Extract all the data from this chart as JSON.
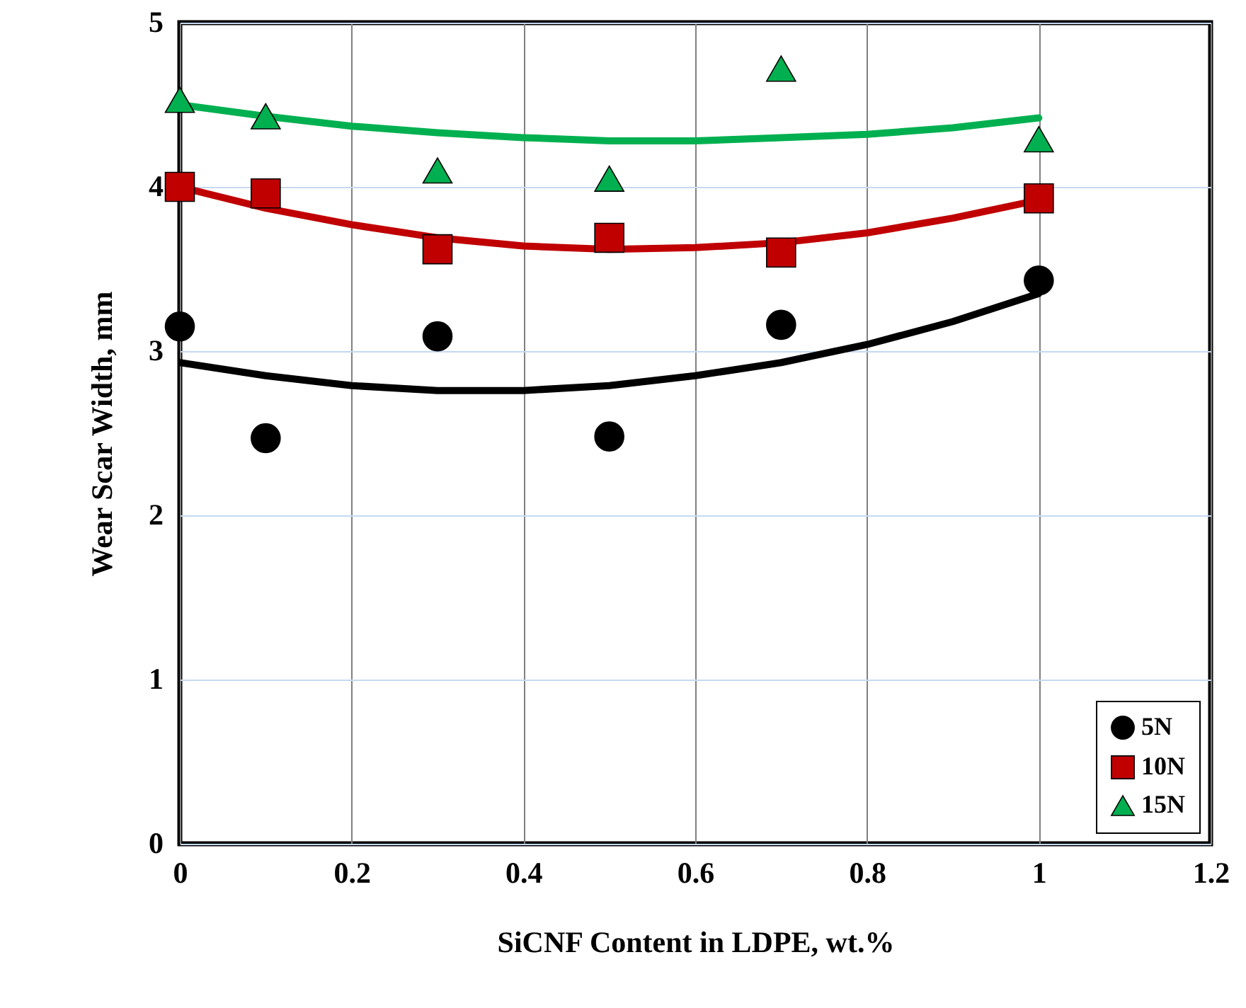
{
  "chart_data": {
    "type": "scatter",
    "xlabel": "SiCNF Content in LDPE, wt.%",
    "ylabel": "Wear Scar Width, mm",
    "x": [
      0,
      0.1,
      0.3,
      0.5,
      0.7,
      1
    ],
    "series": [
      {
        "type": "line",
        "color": "#000000",
        "x": [
          0,
          0.1,
          0.2,
          0.3,
          0.4,
          0.5,
          0.6,
          0.7,
          0.8,
          0.9,
          1
        ],
        "values": [
          2.93,
          2.85,
          2.79,
          2.76,
          2.76,
          2.79,
          2.85,
          2.93,
          3.04,
          3.18,
          3.35
        ]
      },
      {
        "type": "line",
        "color": "#c00000",
        "x": [
          0,
          0.1,
          0.2,
          0.3,
          0.4,
          0.5,
          0.6,
          0.7,
          0.8,
          0.9,
          1
        ],
        "values": [
          4.0,
          3.87,
          3.77,
          3.69,
          3.64,
          3.62,
          3.63,
          3.66,
          3.72,
          3.81,
          3.92
        ]
      },
      {
        "type": "line",
        "color": "#00b050",
        "x": [
          0,
          0.1,
          0.2,
          0.3,
          0.4,
          0.5,
          0.6,
          0.7,
          0.8,
          0.9,
          1
        ],
        "values": [
          4.5,
          4.43,
          4.37,
          4.33,
          4.3,
          4.28,
          4.28,
          4.3,
          4.32,
          4.36,
          4.42
        ]
      },
      {
        "name": "5N",
        "color": "#000000",
        "marker": "circle",
        "values": [
          3.15,
          2.47,
          3.09,
          2.48,
          3.16,
          3.43
        ]
      },
      {
        "name": "10N",
        "color": "#c00000",
        "marker": "square",
        "values": [
          4.0,
          3.96,
          3.62,
          3.69,
          3.6,
          3.93
        ]
      },
      {
        "name": "15N",
        "color": "#00b050",
        "marker": "triangle",
        "values": [
          4.53,
          4.43,
          4.1,
          4.05,
          4.72,
          4.29
        ]
      }
    ],
    "xlim": [
      0,
      1.2
    ],
    "xticks": [
      0,
      0.2,
      0.4,
      0.6,
      0.8,
      1,
      1.2
    ],
    "ylim": [
      0,
      5
    ],
    "yticks": [
      0,
      1,
      2,
      3,
      4,
      5
    ],
    "grid": true,
    "legend": "bottom right"
  }
}
